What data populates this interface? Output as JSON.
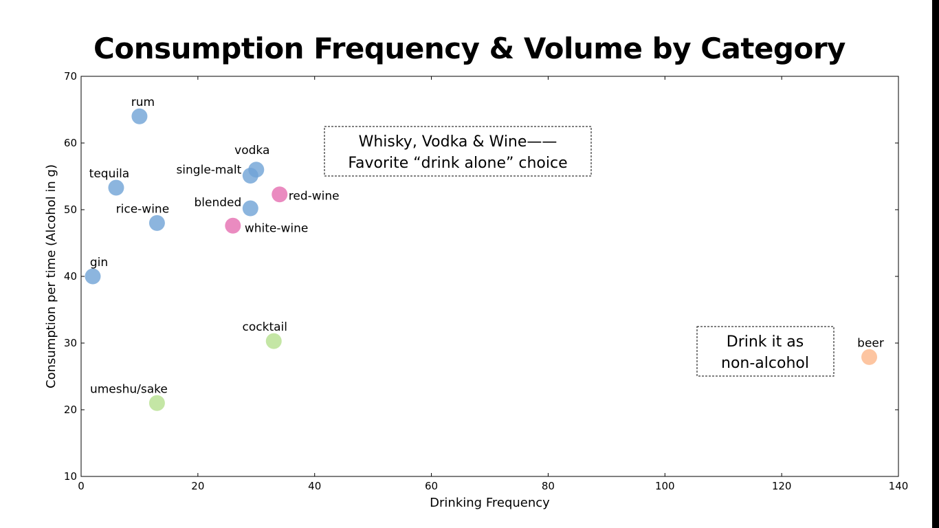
{
  "slide_title": "Consumption Frequency & Volume by Category",
  "chart_data": {
    "type": "scatter",
    "title": "Consumption Frequency & Volume by Category",
    "xlabel": "Drinking Frequency",
    "ylabel": "Consumption per time (Alcohol in g)",
    "xlim": [
      0,
      140
    ],
    "ylim": [
      10,
      70
    ],
    "xticks": [
      "0",
      "20",
      "40",
      "60",
      "80",
      "100",
      "120",
      "140"
    ],
    "yticks": [
      "10",
      "20",
      "30",
      "40",
      "50",
      "60",
      "70"
    ],
    "grid": false,
    "colors": {
      "blue": "#6fa3d6",
      "pink": "#e56eb0",
      "green": "#b5e08f",
      "orange": "#fdb789"
    },
    "points": [
      {
        "label": "rum",
        "x": 10,
        "y": 64,
        "color": "blue"
      },
      {
        "label": "tequila",
        "x": 6,
        "y": 53.3,
        "color": "blue"
      },
      {
        "label": "rice-wine",
        "x": 13,
        "y": 48,
        "color": "blue"
      },
      {
        "label": "gin",
        "x": 2,
        "y": 40,
        "color": "blue"
      },
      {
        "label": "vodka",
        "x": 30,
        "y": 56,
        "color": "blue"
      },
      {
        "label": "single-malt",
        "x": 29,
        "y": 55.1,
        "color": "blue"
      },
      {
        "label": "blended",
        "x": 29,
        "y": 50.2,
        "color": "blue"
      },
      {
        "label": "red-wine",
        "x": 34,
        "y": 52.3,
        "color": "pink"
      },
      {
        "label": "white-wine",
        "x": 26,
        "y": 47.6,
        "color": "pink"
      },
      {
        "label": "cocktail",
        "x": 33,
        "y": 30.3,
        "color": "green"
      },
      {
        "label": "umeshu/sake",
        "x": 13,
        "y": 21,
        "color": "green"
      },
      {
        "label": "beer",
        "x": 135,
        "y": 27.9,
        "color": "orange"
      }
    ],
    "annotations": [
      {
        "lines": [
          "Whisky, Vodka & Wine——",
          "Favorite “drink alone” choice"
        ]
      },
      {
        "lines": [
          "Drink it as",
          "non-alcohol"
        ]
      }
    ]
  }
}
